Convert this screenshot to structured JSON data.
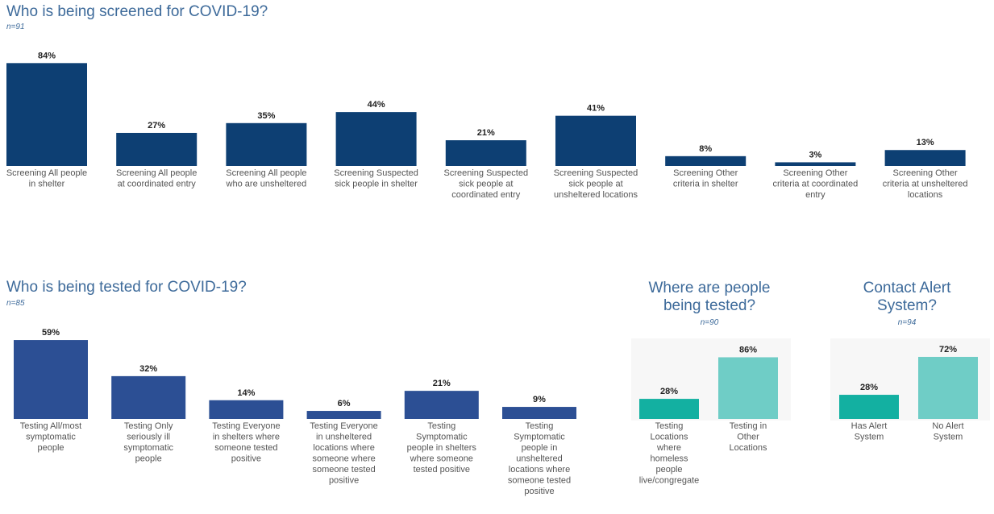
{
  "chart_data": [
    {
      "id": "screened",
      "type": "bar",
      "title": "Who is being screened for COVID-19?",
      "subtitle": "n=91",
      "color": "#0d3f73",
      "categories": [
        [
          "Screening All people",
          "in shelter"
        ],
        [
          "Screening All people",
          "at coordinated entry"
        ],
        [
          "Screening All people",
          "who are unsheltered"
        ],
        [
          "Screening Suspected",
          "sick people in shelter"
        ],
        [
          "Screening Suspected",
          "sick people at",
          "coordinated entry"
        ],
        [
          "Screening Suspected",
          "sick people at",
          "unsheltered locations"
        ],
        [
          "Screening Other",
          "criteria in shelter"
        ],
        [
          "Screening Other",
          "criteria at coordinated",
          "entry"
        ],
        [
          "Screening Other",
          "criteria at unsheltered",
          "locations"
        ]
      ],
      "values": [
        84,
        27,
        35,
        44,
        21,
        41,
        8,
        3,
        13
      ],
      "labels": [
        "84%",
        "27%",
        "35%",
        "44%",
        "21%",
        "41%",
        "8%",
        "3%",
        "13%"
      ],
      "ylim": [
        0,
        100
      ]
    },
    {
      "id": "tested",
      "type": "bar",
      "title": "Who is being tested for COVID-19?",
      "subtitle": "n=85",
      "color": "#2c4f94",
      "categories": [
        [
          "Testing All/most",
          "symptomatic",
          "people"
        ],
        [
          "Testing Only",
          "seriously ill",
          "symptomatic",
          "people"
        ],
        [
          "Testing Everyone",
          "in shelters where",
          "someone tested",
          "positive"
        ],
        [
          "Testing Everyone",
          "in unsheltered",
          "locations where",
          "someone where",
          "someone tested",
          "positive"
        ],
        [
          "Testing",
          "Symptomatic",
          "people in shelters",
          "where someone",
          "tested positive"
        ],
        [
          "Testing",
          "Symptomatic",
          "people in",
          "unsheltered",
          "locations where",
          "someone tested",
          "positive"
        ]
      ],
      "values": [
        59,
        32,
        14,
        6,
        21,
        9
      ],
      "labels": [
        "59%",
        "32%",
        "14%",
        "6%",
        "21%",
        "9%"
      ],
      "ylim": [
        0,
        100
      ]
    },
    {
      "id": "where",
      "type": "bar",
      "title": "Where are people being tested?",
      "subtitle": "n=90",
      "colors": [
        "#13b0a1",
        "#6fcdc6"
      ],
      "categories": [
        [
          "Testing",
          "Locations",
          "where",
          "homeless",
          "people",
          "live/congregate"
        ],
        [
          "Testing in",
          "Other",
          "Locations"
        ]
      ],
      "values": [
        28,
        86
      ],
      "labels": [
        "28%",
        "86%"
      ],
      "ylim": [
        0,
        100
      ]
    },
    {
      "id": "alert",
      "type": "bar",
      "title": "Contact Alert System?",
      "subtitle": "n=94",
      "colors": [
        "#13b0a1",
        "#6fcdc6"
      ],
      "categories": [
        [
          "Has Alert",
          "System"
        ],
        [
          "No Alert",
          "System"
        ]
      ],
      "values": [
        28,
        72
      ],
      "labels": [
        "28%",
        "72%"
      ],
      "ylim": [
        0,
        100
      ]
    }
  ]
}
